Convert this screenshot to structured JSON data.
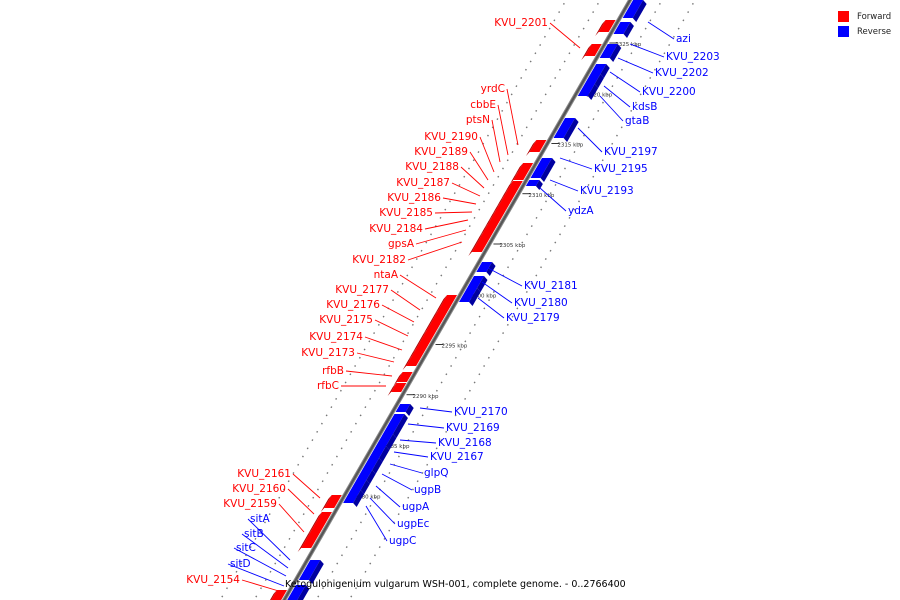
{
  "legend": {
    "forward_label": "Forward",
    "reverse_label": "Reverse",
    "forward_color": "#ff0000",
    "reverse_color": "#0000ff"
  },
  "caption": "Ketogulonigenium vulgarum WSH-001, complete genome. - 0..2766400",
  "ticks": [
    {
      "label": "2325 kbp",
      "kbp": 2325
    },
    {
      "label": "2320 kbp",
      "kbp": 2320
    },
    {
      "label": "2315 kbp",
      "kbp": 2315
    },
    {
      "label": "2310 kbp",
      "kbp": 2310
    },
    {
      "label": "2305 kbp",
      "kbp": 2305
    },
    {
      "label": "2300 kbp",
      "kbp": 2300
    },
    {
      "label": "2295 kbp",
      "kbp": 2295
    },
    {
      "label": "2290 kbp",
      "kbp": 2290
    },
    {
      "label": "2285 kbp",
      "kbp": 2285
    },
    {
      "label": "2280 kbp",
      "kbp": 2280
    }
  ],
  "forward_genes": [
    {
      "name": "KVU_2201"
    },
    {
      "name": "yrdC"
    },
    {
      "name": "cbbE"
    },
    {
      "name": "ptsN"
    },
    {
      "name": "KVU_2190"
    },
    {
      "name": "KVU_2189"
    },
    {
      "name": "KVU_2188"
    },
    {
      "name": "KVU_2187"
    },
    {
      "name": "KVU_2186"
    },
    {
      "name": "KVU_2185"
    },
    {
      "name": "KVU_2184"
    },
    {
      "name": "gpsA"
    },
    {
      "name": "KVU_2182"
    },
    {
      "name": "ntaA"
    },
    {
      "name": "KVU_2177"
    },
    {
      "name": "KVU_2176"
    },
    {
      "name": "KVU_2175"
    },
    {
      "name": "KVU_2174"
    },
    {
      "name": "KVU_2173"
    },
    {
      "name": "rfbB"
    },
    {
      "name": "rfbC"
    },
    {
      "name": "KVU_2161"
    },
    {
      "name": "KVU_2160"
    },
    {
      "name": "KVU_2159"
    },
    {
      "name": "KVU_2154"
    }
  ],
  "reverse_genes": [
    {
      "name": "azi"
    },
    {
      "name": "KVU_2203"
    },
    {
      "name": "KVU_2202"
    },
    {
      "name": "KVU_2200"
    },
    {
      "name": "kdsB"
    },
    {
      "name": "gtaB"
    },
    {
      "name": "KVU_2197"
    },
    {
      "name": "KVU_2195"
    },
    {
      "name": "KVU_2193"
    },
    {
      "name": "ydzA"
    },
    {
      "name": "KVU_2181"
    },
    {
      "name": "KVU_2180"
    },
    {
      "name": "KVU_2179"
    },
    {
      "name": "KVU_2170"
    },
    {
      "name": "KVU_2169"
    },
    {
      "name": "KVU_2168"
    },
    {
      "name": "KVU_2167"
    },
    {
      "name": "glpQ"
    },
    {
      "name": "ugpB"
    },
    {
      "name": "ugpA"
    },
    {
      "name": "ugpEc"
    },
    {
      "name": "ugpC"
    },
    {
      "name": "sitA"
    },
    {
      "name": "sitB"
    },
    {
      "name": "sitC"
    },
    {
      "name": "sitD"
    }
  ]
}
